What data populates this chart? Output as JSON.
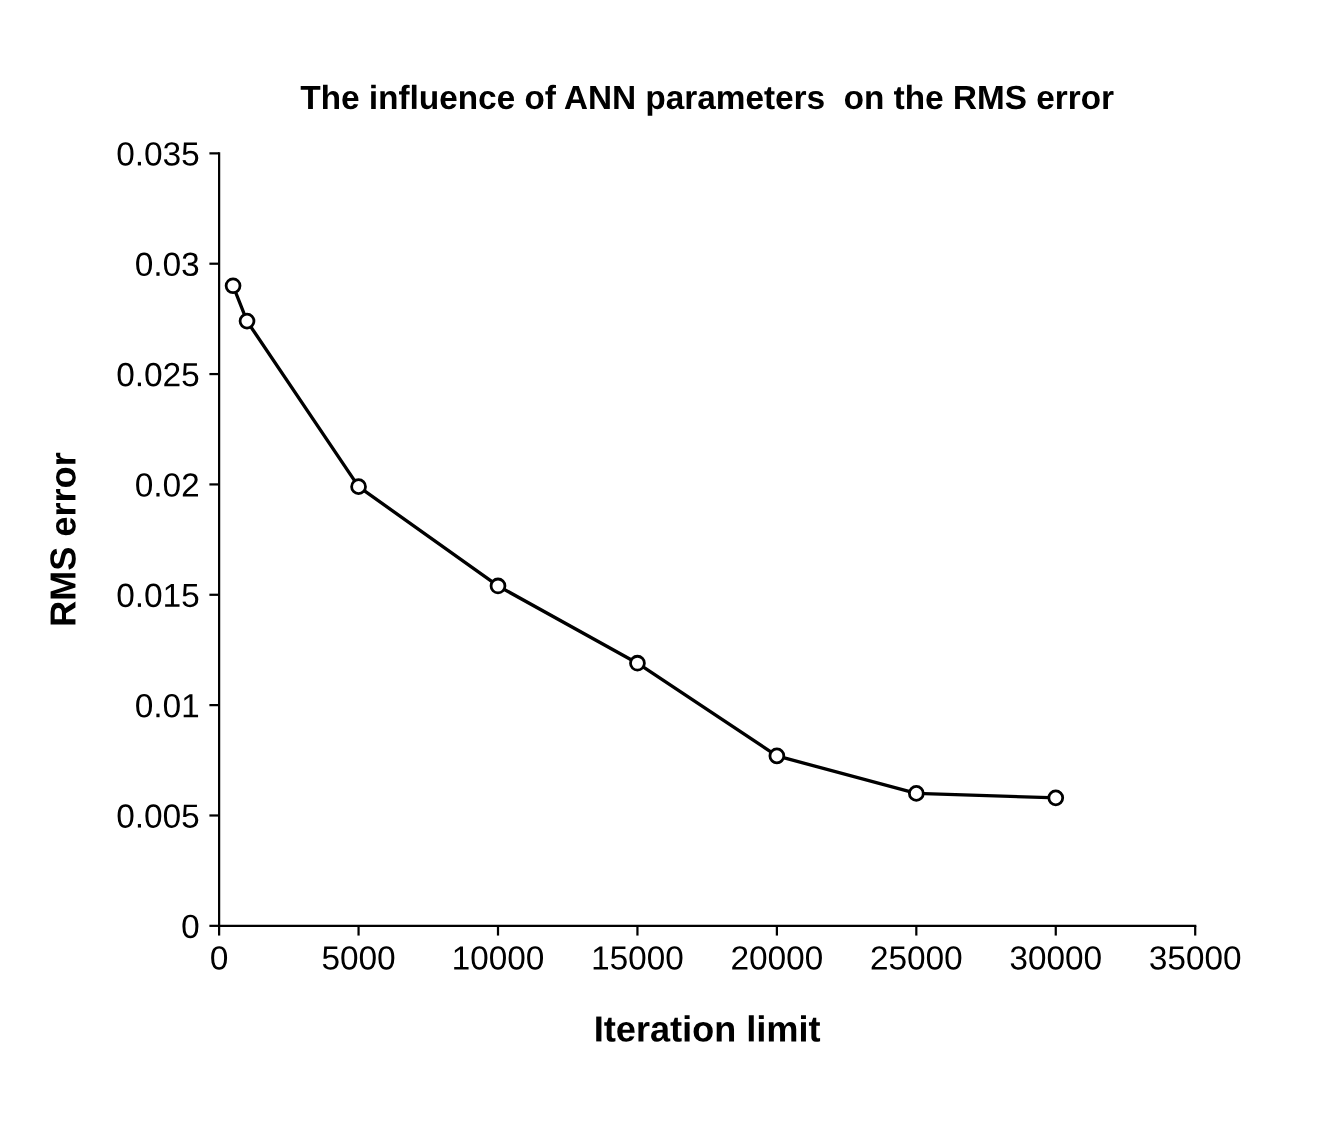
{
  "chart_data": {
    "type": "line",
    "title": "The influence of ANN parameters  on the RMS error",
    "xlabel": "Iteration limit",
    "ylabel": "RMS error",
    "x": [
      500,
      1000,
      5000,
      10000,
      15000,
      20000,
      25000,
      30000
    ],
    "series": [
      {
        "color": "#000000",
        "values": [
          0.029,
          0.0274,
          0.0199,
          0.0154,
          0.0119,
          0.0077,
          0.006,
          0.0058
        ]
      }
    ],
    "xlim": [
      0,
      35000
    ],
    "xticks": [
      0,
      5000,
      10000,
      15000,
      20000,
      25000,
      30000,
      35000
    ],
    "ylim": [
      0,
      0.035
    ],
    "yticks": [
      0,
      0.005,
      0.01,
      0.015,
      0.02,
      0.025,
      0.03,
      0.035
    ],
    "grid": false,
    "legend": false,
    "marker": "circle",
    "line_style": "solid"
  }
}
